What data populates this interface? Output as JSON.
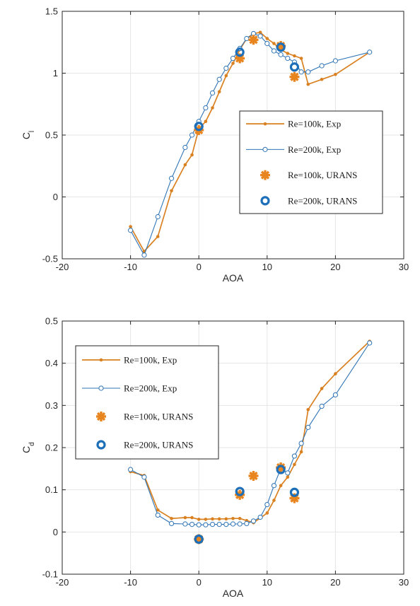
{
  "colors": {
    "exp100": "#d98021",
    "exp200": "#2f74b5",
    "urans100": "#e8851f",
    "urans200": "#1c6fb8",
    "grid": "#e6e6e6",
    "axis": "#262626"
  },
  "chart_data": [
    {
      "type": "line",
      "title": "",
      "xlabel": "AOA",
      "ylabel": "C",
      "ylabel_sub": "l",
      "xlim": [
        -20,
        30
      ],
      "ylim": [
        -0.5,
        1.5
      ],
      "xticks": [
        -20,
        -10,
        0,
        10,
        20,
        30
      ],
      "yticks": [
        -0.5,
        0,
        0.5,
        1,
        1.5
      ],
      "xtick_labels": [
        "-20",
        "-10",
        "0",
        "10",
        "20",
        "30"
      ],
      "ytick_labels": [
        "-0.5",
        "0",
        "0.5",
        "1",
        "1.5"
      ],
      "grid": true,
      "legend_position": "right-middle",
      "series": [
        {
          "name": "Re=100k, Exp",
          "style": "line-dot",
          "color": "#d98021",
          "x": [
            -10,
            -8,
            -6,
            -4,
            -2,
            -1,
            0,
            1,
            2,
            3,
            4,
            5,
            6,
            7,
            8,
            9,
            10,
            11,
            12,
            13,
            14,
            15,
            16,
            18,
            20,
            25
          ],
          "y": [
            -0.24,
            -0.44,
            -0.32,
            0.05,
            0.26,
            0.34,
            0.55,
            0.61,
            0.72,
            0.85,
            0.98,
            1.08,
            1.19,
            1.28,
            1.32,
            1.33,
            1.28,
            1.24,
            1.19,
            1.16,
            1.14,
            1.12,
            0.91,
            0.95,
            0.99,
            1.17
          ]
        },
        {
          "name": "Re=200k, Exp",
          "style": "line-circle",
          "color": "#2f74b5",
          "x": [
            -10,
            -8,
            -6,
            -4,
            -2,
            -1,
            0,
            1,
            2,
            3,
            4,
            5,
            6,
            7,
            8,
            9,
            10,
            11,
            12,
            13,
            14,
            15,
            16,
            18,
            20,
            25
          ],
          "y": [
            -0.27,
            -0.47,
            -0.16,
            0.15,
            0.4,
            0.5,
            0.61,
            0.72,
            0.84,
            0.95,
            1.04,
            1.12,
            1.2,
            1.28,
            1.32,
            1.3,
            1.24,
            1.18,
            1.15,
            1.12,
            1.09,
            1.01,
            1.01,
            1.06,
            1.1,
            1.17
          ]
        },
        {
          "name": "Re=100k, URANS",
          "style": "asterisk",
          "color": "#e8851f",
          "x": [
            0,
            6,
            8,
            12,
            14
          ],
          "y": [
            0.54,
            1.12,
            1.27,
            1.22,
            0.97
          ]
        },
        {
          "name": "Re=200k, URANS",
          "style": "ring",
          "color": "#1c6fb8",
          "x": [
            0,
            6,
            12,
            14
          ],
          "y": [
            0.57,
            1.17,
            1.21,
            1.05
          ]
        }
      ]
    },
    {
      "type": "line",
      "title": "",
      "xlabel": "AOA",
      "ylabel": "C",
      "ylabel_sub": "d",
      "xlim": [
        -20,
        30
      ],
      "ylim": [
        -0.1,
        0.5
      ],
      "xticks": [
        -20,
        -10,
        0,
        10,
        20,
        30
      ],
      "yticks": [
        -0.1,
        0,
        0.1,
        0.2,
        0.3,
        0.4,
        0.5
      ],
      "xtick_labels": [
        "-20",
        "-10",
        "0",
        "10",
        "20",
        "30"
      ],
      "ytick_labels": [
        "-0.1",
        "0",
        "0.1",
        "0.2",
        "0.3",
        "0.4",
        "0.5"
      ],
      "grid": true,
      "legend_position": "top-left",
      "series": [
        {
          "name": "Re=100k, Exp",
          "style": "line-dot",
          "color": "#d98021",
          "x": [
            -10,
            -8,
            -6,
            -4,
            -2,
            -1,
            0,
            1,
            2,
            3,
            4,
            5,
            6,
            7,
            8,
            9,
            10,
            11,
            12,
            13,
            14,
            15,
            16,
            18,
            20,
            25
          ],
          "y": [
            0.143,
            0.134,
            0.052,
            0.032,
            0.034,
            0.034,
            0.03,
            0.03,
            0.031,
            0.031,
            0.031,
            0.032,
            0.032,
            0.027,
            0.022,
            0.033,
            0.045,
            0.075,
            0.11,
            0.13,
            0.16,
            0.19,
            0.29,
            0.34,
            0.375,
            0.452
          ]
        },
        {
          "name": "Re=200k, Exp",
          "style": "line-circle",
          "color": "#2f74b5",
          "x": [
            -10,
            -8,
            -6,
            -4,
            -2,
            -1,
            0,
            1,
            2,
            3,
            4,
            5,
            6,
            7,
            8,
            9,
            10,
            11,
            12,
            13,
            14,
            15,
            16,
            18,
            20,
            25
          ],
          "y": [
            0.148,
            0.13,
            0.04,
            0.02,
            0.019,
            0.018,
            0.017,
            0.017,
            0.018,
            0.018,
            0.018,
            0.019,
            0.019,
            0.02,
            0.026,
            0.035,
            0.065,
            0.11,
            0.15,
            0.14,
            0.18,
            0.21,
            0.248,
            0.298,
            0.325,
            0.448
          ]
        },
        {
          "name": "Re=100k, URANS",
          "style": "asterisk",
          "color": "#e8851f",
          "x": [
            0,
            6,
            8,
            12,
            14
          ],
          "y": [
            -0.017,
            0.088,
            0.133,
            0.153,
            0.08
          ]
        },
        {
          "name": "Re=200k, URANS",
          "style": "ring",
          "color": "#1c6fb8",
          "x": [
            0,
            6,
            12,
            14
          ],
          "y": [
            -0.017,
            0.096,
            0.148,
            0.094
          ]
        }
      ]
    }
  ]
}
